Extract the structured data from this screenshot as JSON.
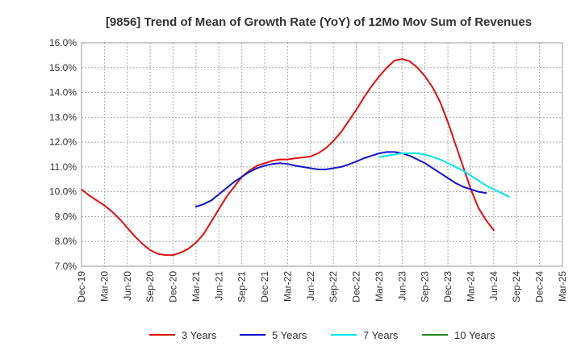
{
  "chart_data": {
    "type": "line",
    "title": "[9856]  Trend of Mean of Growth Rate (YoY) of 12Mo Mov Sum of Revenues",
    "xlabel": "",
    "ylabel": "",
    "ylim": [
      7.0,
      16.0
    ],
    "y_ticks": [
      7.0,
      8.0,
      9.0,
      10.0,
      11.0,
      12.0,
      13.0,
      14.0,
      15.0,
      16.0
    ],
    "y_tick_labels": [
      "7.0%",
      "8.0%",
      "9.0%",
      "10.0%",
      "11.0%",
      "12.0%",
      "13.0%",
      "14.0%",
      "15.0%",
      "16.0%"
    ],
    "x_tick_labels": [
      "Dec-19",
      "Mar-20",
      "Jun-20",
      "Sep-20",
      "Dec-20",
      "Mar-21",
      "Jun-21",
      "Sep-21",
      "Dec-21",
      "Mar-22",
      "Jun-22",
      "Sep-22",
      "Dec-22",
      "Mar-23",
      "Jun-23",
      "Sep-23",
      "Dec-23",
      "Mar-24",
      "Jun-24",
      "Sep-24",
      "Dec-24",
      "Mar-25"
    ],
    "grid": true,
    "legend_position": "bottom",
    "series": [
      {
        "name": "3 Years",
        "color": "#dd1111",
        "start_index": 0,
        "values": [
          10.1,
          9.85,
          9.65,
          9.45,
          9.2,
          8.9,
          8.55,
          8.2,
          7.9,
          7.65,
          7.5,
          7.45,
          7.45,
          7.55,
          7.7,
          7.95,
          8.3,
          8.8,
          9.3,
          9.8,
          10.2,
          10.6,
          10.85,
          11.05,
          11.15,
          11.25,
          11.3,
          11.3,
          11.35,
          11.38,
          11.42,
          11.55,
          11.75,
          12.05,
          12.4,
          12.85,
          13.3,
          13.8,
          14.25,
          14.65,
          15.0,
          15.28,
          15.35,
          15.25,
          15.0,
          14.65,
          14.2,
          13.6,
          12.8,
          11.9,
          11.0,
          10.1,
          9.35,
          8.85,
          8.45
        ]
      },
      {
        "name": "5 Years",
        "color": "#1111cc",
        "start_index": 15,
        "values": [
          9.4,
          9.5,
          9.65,
          9.9,
          10.15,
          10.4,
          10.6,
          10.8,
          10.95,
          11.05,
          11.12,
          11.15,
          11.12,
          11.05,
          11.0,
          10.95,
          10.9,
          10.9,
          10.95,
          11.0,
          11.1,
          11.22,
          11.35,
          11.45,
          11.55,
          11.6,
          11.6,
          11.55,
          11.45,
          11.3,
          11.15,
          10.95,
          10.75,
          10.55,
          10.35,
          10.2,
          10.1,
          10.0,
          9.95
        ]
      },
      {
        "name": "7 Years",
        "color": "#00e5ee",
        "start_index": 39,
        "values": [
          11.4,
          11.45,
          11.5,
          11.55,
          11.55,
          11.55,
          11.5,
          11.4,
          11.3,
          11.15,
          11.0,
          10.85,
          10.65,
          10.45,
          10.25,
          10.1,
          9.95,
          9.8
        ]
      },
      {
        "name": "10 Years",
        "color": "#228822",
        "start_index": 0,
        "values": []
      }
    ]
  }
}
